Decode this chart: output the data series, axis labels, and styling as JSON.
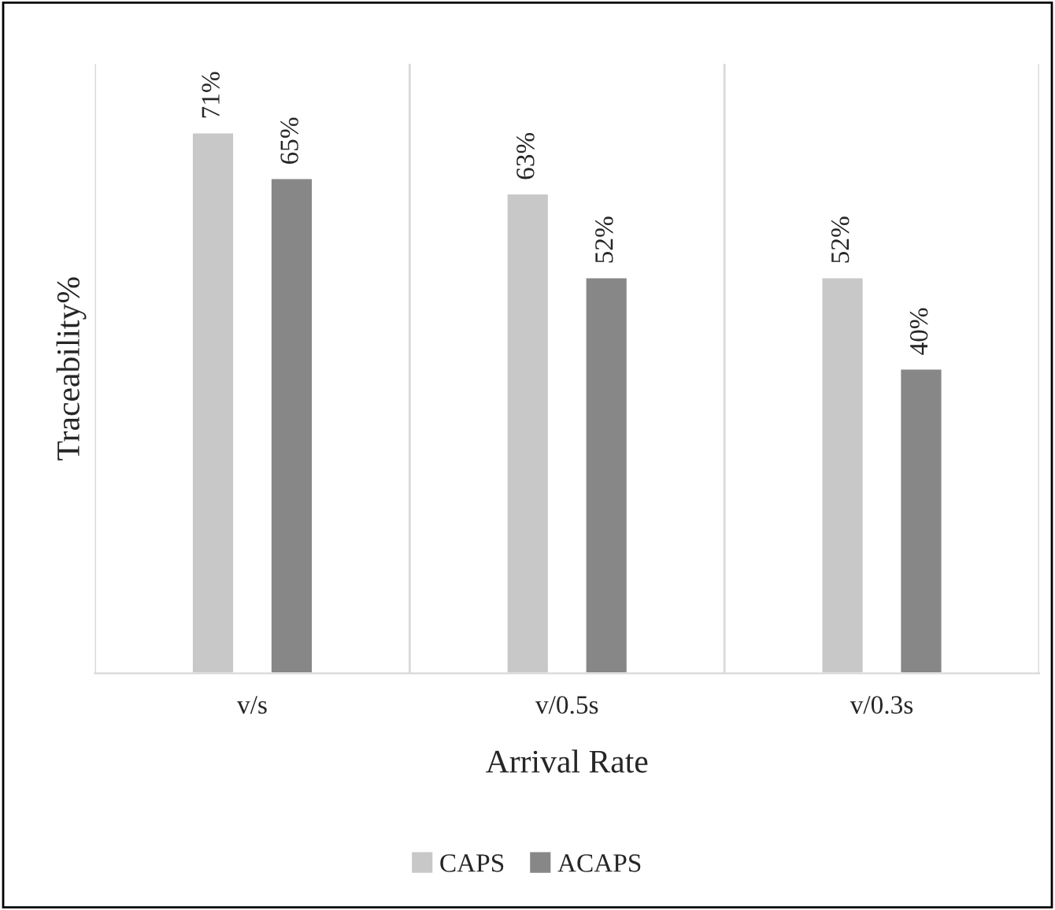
{
  "chart_data": {
    "type": "bar",
    "xlabel": "Arrival Rate",
    "ylabel": "Traceability%",
    "categories": [
      "v/s",
      "v/0.5s",
      "v/0.3s"
    ],
    "series": [
      {
        "name": "CAPS",
        "color": "#c8c8c8",
        "values": [
          71,
          63,
          52
        ],
        "value_labels": [
          "71%",
          "63%",
          "52%"
        ]
      },
      {
        "name": "ACAPS",
        "color": "#878787",
        "values": [
          65,
          52,
          40
        ],
        "value_labels": [
          "65%",
          "52%",
          "40%"
        ]
      }
    ],
    "ylim": [
      0,
      80
    ],
    "grid": "x",
    "legend": "bottom",
    "tick_labels": "x"
  }
}
